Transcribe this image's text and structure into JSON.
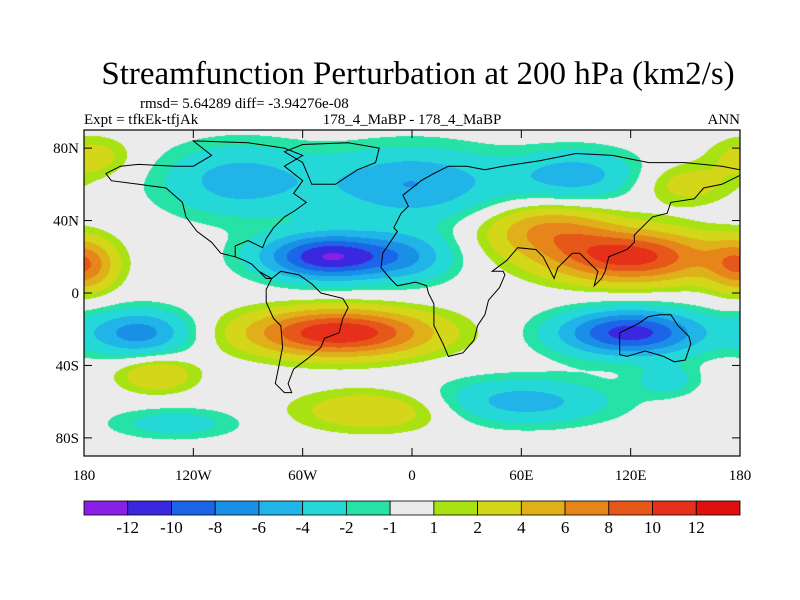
{
  "chart_data": {
    "type": "heatmap",
    "title": "Streamfunction Perturbation at 200 hPa (km2/s)",
    "stats_text": "rmsd= 5.64289  diff= -3.94276e-08",
    "case_left": "Expt = tfkEk-tfjAk",
    "case_center": "178_4_MaBP - 178_4_MaBP",
    "season": "ANN",
    "x_ticks": [
      {
        "value": -180,
        "label": "180"
      },
      {
        "value": -120,
        "label": "120W"
      },
      {
        "value": -60,
        "label": "60W"
      },
      {
        "value": 0,
        "label": "0"
      },
      {
        "value": 60,
        "label": "60E"
      },
      {
        "value": 120,
        "label": "120E"
      },
      {
        "value": 180,
        "label": "180"
      }
    ],
    "y_ticks": [
      {
        "value": 80,
        "label": "80N"
      },
      {
        "value": 40,
        "label": "40N"
      },
      {
        "value": 0,
        "label": "0"
      },
      {
        "value": -40,
        "label": "40S"
      },
      {
        "value": -80,
        "label": "80S"
      }
    ],
    "xlim": [
      -180,
      180
    ],
    "ylim": [
      -90,
      90
    ],
    "colorbar": {
      "levels": [
        "-12",
        "-10",
        "-8",
        "-6",
        "-4",
        "-2",
        "-1",
        "1",
        "2",
        "4",
        "6",
        "8",
        "10",
        "12"
      ],
      "colors": [
        "#8a1fe6",
        "#3a28e0",
        "#1c64e8",
        "#1990e6",
        "#20b4e8",
        "#24d8d8",
        "#27e2a6",
        "#ebebeb",
        "#a8e212",
        "#d4d61a",
        "#e0b01a",
        "#e6861a",
        "#e6581a",
        "#e6301a",
        "#e01010"
      ]
    },
    "field_centers": [
      {
        "lon": -45,
        "lat": 20,
        "value": -12,
        "sx": 26,
        "sy": 9
      },
      {
        "lon": -95,
        "lat": 62,
        "value": -5,
        "sx": 30,
        "sy": 14
      },
      {
        "lon": 0,
        "lat": 60,
        "value": -6,
        "sx": 35,
        "sy": 14
      },
      {
        "lon": 90,
        "lat": 65,
        "value": -5,
        "sx": 25,
        "sy": 10
      },
      {
        "lon": -150,
        "lat": -22,
        "value": -7,
        "sx": 20,
        "sy": 9
      },
      {
        "lon": 120,
        "lat": -22,
        "value": -11,
        "sx": 28,
        "sy": 9
      },
      {
        "lon": -40,
        "lat": -22,
        "value": 12,
        "sx": 35,
        "sy": 9
      },
      {
        "lon": 120,
        "lat": 20,
        "value": 11,
        "sx": 32,
        "sy": 10
      },
      {
        "lon": 75,
        "lat": 35,
        "value": 6,
        "sx": 25,
        "sy": 10
      },
      {
        "lon": -180,
        "lat": 15,
        "value": 7,
        "sx": 12,
        "sy": 10
      },
      {
        "lon": -175,
        "lat": 75,
        "value": 3,
        "sx": 15,
        "sy": 8
      },
      {
        "lon": -140,
        "lat": -45,
        "value": 4,
        "sx": 15,
        "sy": 7
      },
      {
        "lon": 60,
        "lat": -60,
        "value": -5,
        "sx": 35,
        "sy": 9
      },
      {
        "lon": -130,
        "lat": -72,
        "value": -3,
        "sx": 25,
        "sy": 6
      },
      {
        "lon": -20,
        "lat": -65,
        "value": 4,
        "sx": 30,
        "sy": 8
      },
      {
        "lon": 140,
        "lat": -48,
        "value": -3,
        "sx": 12,
        "sy": 6
      },
      {
        "lon": 150,
        "lat": 60,
        "value": 3,
        "sx": 18,
        "sy": 8
      },
      {
        "lon": 0,
        "lat": 20,
        "value": -4,
        "sx": 18,
        "sy": 10
      }
    ]
  }
}
